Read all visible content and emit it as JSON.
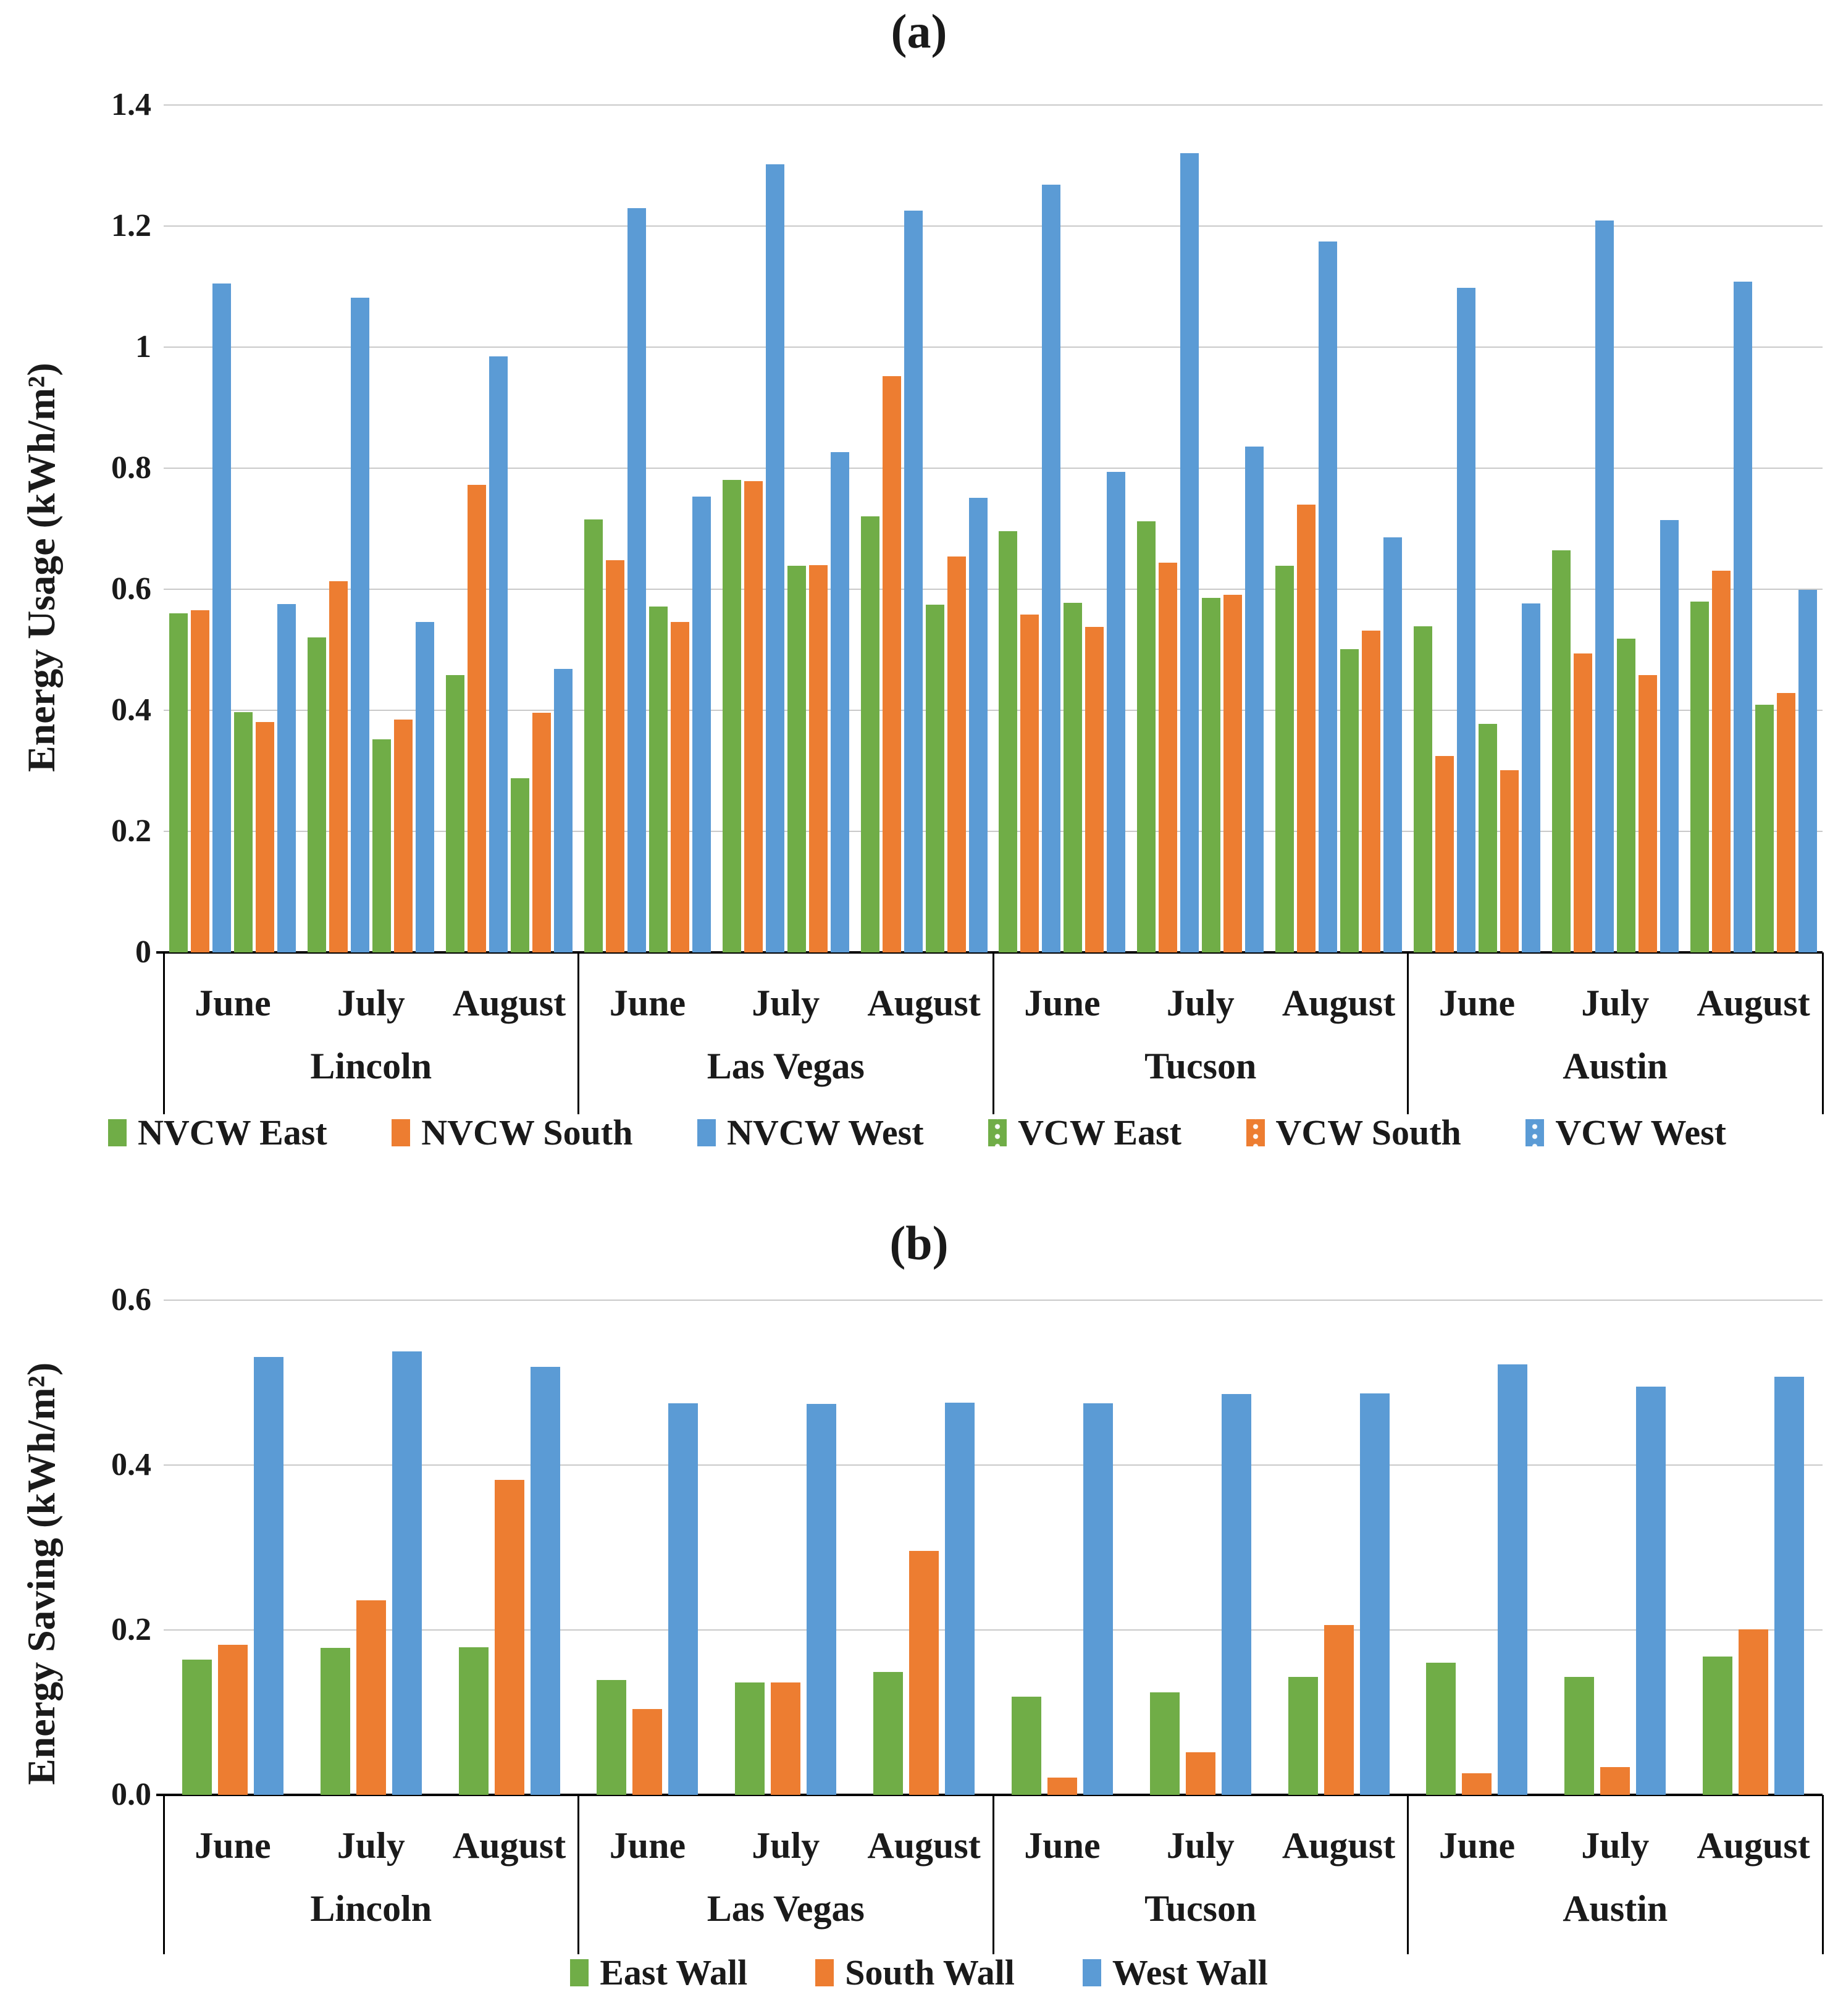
{
  "figure": {
    "panel_a_title": "(a)",
    "panel_b_title": "(b)"
  },
  "chart_data": [
    {
      "type": "bar",
      "title": "(a)",
      "ylabel": "Energy Usage (kWh/m²)",
      "ylim": [
        0,
        1.4
      ],
      "ytick_step": 0.2,
      "ytick_labels": [
        "0",
        "0.2",
        "0.4",
        "0.6",
        "0.8",
        "1",
        "1.2",
        "1.4"
      ],
      "grid": true,
      "legend_position": "bottom",
      "cities": [
        "Lincoln",
        "Las Vegas",
        "Tucson",
        "Austin"
      ],
      "months": [
        "June",
        "July",
        "August"
      ],
      "series": [
        {
          "name": "NVCW East",
          "color": "#70AD47",
          "pattern": "solid",
          "values": [
            0.56,
            0.52,
            0.458,
            0.715,
            0.781,
            0.72,
            0.696,
            0.712,
            0.639,
            0.539,
            0.664,
            0.58
          ]
        },
        {
          "name": "NVCW South",
          "color": "#ED7D31",
          "pattern": "solid",
          "values": [
            0.565,
            0.613,
            0.772,
            0.648,
            0.779,
            0.952,
            0.558,
            0.644,
            0.74,
            0.324,
            0.494,
            0.631
          ]
        },
        {
          "name": "NVCW West",
          "color": "#5B9BD5",
          "pattern": "solid",
          "values": [
            1.105,
            1.082,
            0.985,
            1.23,
            1.302,
            1.226,
            1.268,
            1.32,
            1.174,
            1.098,
            1.209,
            1.108
          ]
        },
        {
          "name": "VCW  East",
          "color": "#70AD47",
          "pattern": "dotted",
          "values": [
            0.397,
            0.352,
            0.288,
            0.571,
            0.639,
            0.574,
            0.578,
            0.586,
            0.501,
            0.378,
            0.518,
            0.409
          ]
        },
        {
          "name": "VCW  South",
          "color": "#ED7D31",
          "pattern": "dotted",
          "values": [
            0.381,
            0.385,
            0.396,
            0.546,
            0.64,
            0.654,
            0.538,
            0.591,
            0.532,
            0.301,
            0.458,
            0.429
          ]
        },
        {
          "name": "VCW  West",
          "color": "#5B9BD5",
          "pattern": "dotted",
          "values": [
            0.576,
            0.546,
            0.468,
            0.753,
            0.827,
            0.751,
            0.794,
            0.836,
            0.686,
            0.577,
            0.714,
            0.599
          ]
        }
      ]
    },
    {
      "type": "bar",
      "title": "(b)",
      "ylabel": "Energy Saving (kWh/m²)",
      "ylim": [
        0,
        0.6
      ],
      "ytick_step": 0.2,
      "ytick_labels": [
        "0.0",
        "0.2",
        "0.4",
        "0.6"
      ],
      "grid": true,
      "legend_position": "bottom",
      "cities": [
        "Lincoln",
        "Las Vegas",
        "Tucson",
        "Austin"
      ],
      "months": [
        "June",
        "July",
        "August"
      ],
      "series": [
        {
          "name": "East Wall",
          "color": "#70AD47",
          "pattern": "solid",
          "values": [
            0.164,
            0.178,
            0.179,
            0.139,
            0.136,
            0.149,
            0.119,
            0.124,
            0.143,
            0.16,
            0.143,
            0.168
          ]
        },
        {
          "name": "South Wall",
          "color": "#ED7D31",
          "pattern": "solid",
          "values": [
            0.182,
            0.236,
            0.382,
            0.104,
            0.136,
            0.296,
            0.021,
            0.052,
            0.206,
            0.026,
            0.034,
            0.201
          ]
        },
        {
          "name": "West Wall",
          "color": "#5B9BD5",
          "pattern": "solid",
          "values": [
            0.531,
            0.538,
            0.519,
            0.475,
            0.474,
            0.476,
            0.475,
            0.486,
            0.487,
            0.522,
            0.495,
            0.507
          ]
        }
      ]
    }
  ]
}
